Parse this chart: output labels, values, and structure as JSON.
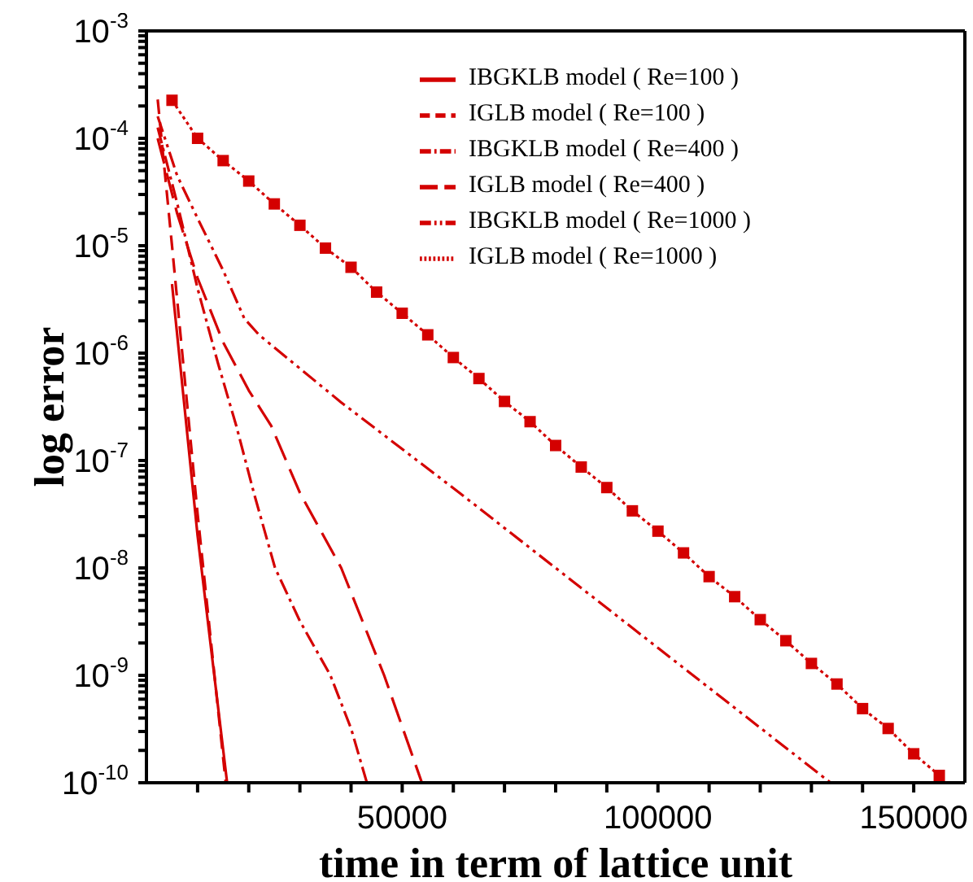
{
  "chart_data": {
    "type": "line",
    "xlabel": "time in term of lattice unit",
    "ylabel": "log error",
    "log": "y",
    "legend": "top right",
    "grid": false,
    "xlim": [
      0,
      160000
    ],
    "xticks": [
      {
        "value": 10000,
        "label": null
      },
      {
        "value": 20000,
        "label": null
      },
      {
        "value": 30000,
        "label": null
      },
      {
        "value": 40000,
        "label": null
      },
      50000,
      {
        "value": 60000,
        "label": null
      },
      {
        "value": 70000,
        "label": null
      },
      {
        "value": 80000,
        "label": null
      },
      {
        "value": 90000,
        "label": null
      },
      100000,
      {
        "value": 110000,
        "label": null
      },
      {
        "value": 120000,
        "label": null
      },
      {
        "value": 130000,
        "label": null
      },
      {
        "value": 140000,
        "label": null
      },
      150000
    ],
    "ylim": [
      1e-10,
      0.001
    ],
    "yticks": [
      {
        "value": 1e-10,
        "label": "10$^{-10}$"
      },
      {
        "value": 2e-10,
        "label": null
      },
      {
        "value": 3e-10,
        "label": null
      },
      {
        "value": 4e-10,
        "label": null
      },
      {
        "value": 5e-10,
        "label": null
      },
      {
        "value": 6e-10,
        "label": null
      },
      {
        "value": 7e-10,
        "label": null
      },
      {
        "value": 8e-10,
        "label": null
      },
      {
        "value": 9e-10,
        "label": null
      },
      {
        "value": 1e-09,
        "label": "10$^{-9}$"
      },
      {
        "value": 2e-09,
        "label": null
      },
      {
        "value": 3e-09,
        "label": null
      },
      {
        "value": 4e-09,
        "label": null
      },
      {
        "value": 5e-09,
        "label": null
      },
      {
        "value": 6e-09,
        "label": null
      },
      {
        "value": 7e-09,
        "label": null
      },
      {
        "value": 8e-09,
        "label": null
      },
      {
        "value": 9e-09,
        "label": null
      },
      {
        "value": 1e-08,
        "label": "10$^{-8}$"
      },
      {
        "value": 2e-08,
        "label": null
      },
      {
        "value": 3e-08,
        "label": null
      },
      {
        "value": 4e-08,
        "label": null
      },
      {
        "value": 5e-08,
        "label": null
      },
      {
        "value": 6e-08,
        "label": null
      },
      {
        "value": 7e-08,
        "label": null
      },
      {
        "value": 8e-08,
        "label": null
      },
      {
        "value": 9e-08,
        "label": null
      },
      {
        "value": 1e-07,
        "label": "10$^{-7}$"
      },
      {
        "value": 2e-07,
        "label": null
      },
      {
        "value": 3e-07,
        "label": null
      },
      {
        "value": 4e-07,
        "label": null
      },
      {
        "value": 5e-07,
        "label": null
      },
      {
        "value": 6e-07,
        "label": null
      },
      {
        "value": 7e-07,
        "label": null
      },
      {
        "value": 8e-07,
        "label": null
      },
      {
        "value": 9e-07,
        "label": null
      },
      {
        "value": 1e-06,
        "label": "10$^{-6}$"
      },
      {
        "value": 2e-06,
        "label": null
      },
      {
        "value": 3e-06,
        "label": null
      },
      {
        "value": 4e-06,
        "label": null
      },
      {
        "value": 5e-06,
        "label": null
      },
      {
        "value": 6e-06,
        "label": null
      },
      {
        "value": 7e-06,
        "label": null
      },
      {
        "value": 8e-06,
        "label": null
      },
      {
        "value": 9e-06,
        "label": null
      },
      {
        "value": 1e-05,
        "label": "10$^{-5}$"
      },
      {
        "value": 2e-05,
        "label": null
      },
      {
        "value": 3e-05,
        "label": null
      },
      {
        "value": 4e-05,
        "label": null
      },
      {
        "value": 5e-05,
        "label": null
      },
      {
        "value": 6e-05,
        "label": null
      },
      {
        "value": 7e-05,
        "label": null
      },
      {
        "value": 8e-05,
        "label": null
      },
      {
        "value": 9e-05,
        "label": null
      },
      {
        "value": 0.0001,
        "label": "10$^{-4}$"
      },
      {
        "value": 0.0002,
        "label": null
      },
      {
        "value": 0.0003,
        "label": null
      },
      {
        "value": 0.0004,
        "label": null
      },
      {
        "value": 0.0005,
        "label": null
      },
      {
        "value": 0.0006,
        "label": null
      },
      {
        "value": 0.0007,
        "label": null
      },
      {
        "value": 0.0008,
        "label": null
      },
      {
        "value": 0.0009,
        "label": null
      },
      {
        "value": 0.001,
        "label": "10$^{-3}$"
      }
    ],
    "series": [
      {
        "name": "IBGKLB model ( Re=100 )",
        "color": "#d40000",
        "line_style": "solid",
        "marker": "none",
        "x": [
          5000,
          10000,
          15770
        ],
        "values": [
          4.4e-06,
          2e-08,
          1e-10
        ]
      },
      {
        "name": "IGLB model ( Re=100 )",
        "color": "#d40000",
        "line_style": "dashed",
        "marker": "none",
        "x": [
          2200,
          5000,
          10000,
          15500
        ],
        "values": [
          0.00023,
          1e-05,
          3.2e-08,
          1e-10
        ]
      },
      {
        "name": "IBGKLB model ( Re=400 )",
        "color": "#d40000",
        "line_style": "dashed",
        "marker": "none",
        "x": [
          2200,
          6000,
          10000,
          14000,
          17570,
          21000,
          25140,
          30000,
          35960,
          40000,
          43100
        ],
        "values": [
          0.000126,
          2.5e-05,
          4e-06,
          8e-07,
          2.1e-07,
          5e-08,
          1e-08,
          3.2e-09,
          1e-09,
          3.2e-10,
          1e-10
        ]
      },
      {
        "name": "IGLB model ( Re=400 )",
        "color": "#d40000",
        "line_style": "dashed",
        "marker": "none",
        "x": [
          2200,
          6000,
          10000,
          15000,
          20000,
          24400,
          30000,
          38080,
          46470,
          53850
        ],
        "values": [
          0.0001,
          2e-05,
          5e-06,
          1.26e-06,
          4.5e-07,
          2.1e-07,
          5e-08,
          1e-08,
          1e-09,
          1e-10
        ]
      },
      {
        "name": "IBGKLB model ( Re=1000 )",
        "color": "#d40000",
        "line_style": "dashed",
        "marker": "none",
        "x": [
          2200,
          6000,
          10000,
          14920,
          19140,
          22000,
          38000,
          61200,
          100000,
          133750
        ],
        "values": [
          0.00016,
          4.5e-05,
          1.8e-05,
          6e-06,
          2.1e-06,
          1.48e-06,
          3.5e-07,
          5e-08,
          1.8e-09,
          1e-10
        ]
      },
      {
        "name": "IGLB model ( Re=1000 )",
        "color": "#d40000",
        "line_style": "dotted",
        "marker": "square",
        "x": [
          5000,
          10000,
          15000,
          20000,
          25000,
          30000,
          35000,
          40000,
          45000,
          50000,
          55000,
          60000,
          65000,
          70000,
          75000,
          80000,
          85000,
          90000,
          95000,
          100000,
          105000,
          110000,
          115000,
          120000,
          125000,
          130000,
          135000,
          140000,
          145000,
          150000,
          155000
        ],
        "values": [
          0.000226,
          0.0001,
          6.2e-05,
          4e-05,
          2.45e-05,
          1.55e-05,
          9.5e-06,
          6.3e-06,
          3.7e-06,
          2.35e-06,
          1.48e-06,
          9.1e-07,
          5.8e-07,
          3.55e-07,
          2.3e-07,
          1.38e-07,
          8.7e-08,
          5.6e-08,
          3.4e-08,
          2.2e-08,
          1.38e-08,
          8.3e-09,
          5.4e-09,
          3.3e-09,
          2.1e-09,
          1.29e-09,
          8.3e-10,
          4.9e-10,
          3.2e-10,
          1.86e-10,
          1.17e-10
        ]
      }
    ]
  }
}
